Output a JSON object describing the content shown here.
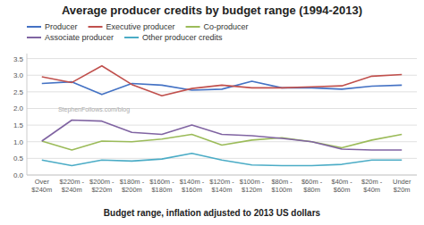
{
  "chart_data": {
    "type": "line",
    "title": "Average producer credits by budget range (1994-2013)",
    "xlabel": "Budget range, inflation adjusted to 2013 US dollars",
    "categories": [
      "Over\n$240m",
      "$220m -\n$240m",
      "$200m -\n$220m",
      "$180m -\n$200m",
      "$160m -\n$180m",
      "$140m -\n$160m",
      "$120m -\n$140m",
      "$100m -\n$120m",
      "$80m -\n$100m",
      "$60m -\n$80m",
      "$40m -\n$60m",
      "$20m -\n$40m",
      "Under\n$20m"
    ],
    "series": [
      {
        "name": "Producer",
        "color": "#4472c4",
        "values": [
          2.75,
          2.8,
          2.42,
          2.75,
          2.7,
          2.55,
          2.58,
          2.82,
          2.62,
          2.62,
          2.58,
          2.67,
          2.7
        ]
      },
      {
        "name": "Executive producer",
        "color": "#c0504d",
        "values": [
          2.95,
          2.78,
          3.28,
          2.72,
          2.38,
          2.6,
          2.7,
          2.62,
          2.62,
          2.65,
          2.68,
          2.97,
          3.02
        ]
      },
      {
        "name": "Co-producer",
        "color": "#9bbb59",
        "values": [
          1.02,
          0.75,
          1.02,
          1.0,
          1.08,
          1.22,
          0.9,
          1.05,
          1.12,
          1.0,
          0.82,
          1.05,
          1.22
        ]
      },
      {
        "name": "Associate producer",
        "color": "#8064a2",
        "values": [
          1.02,
          1.65,
          1.62,
          1.28,
          1.22,
          1.5,
          1.22,
          1.18,
          1.1,
          1.0,
          0.78,
          0.75,
          0.75
        ]
      },
      {
        "name": "Other producer credits",
        "color": "#4bacc6",
        "values": [
          0.45,
          0.28,
          0.45,
          0.42,
          0.48,
          0.65,
          0.45,
          0.3,
          0.28,
          0.28,
          0.32,
          0.45,
          0.45
        ]
      }
    ],
    "ylim": [
      0.0,
      3.65
    ],
    "yticks": [
      {
        "value": 0,
        "label": "0.0"
      },
      0.5,
      {
        "value": 1,
        "label": "1.0"
      },
      1.5,
      {
        "value": 2,
        "label": "2.0"
      },
      2.5,
      {
        "value": 3,
        "label": "3.0"
      },
      3.5
    ],
    "grid": true,
    "legend": "top",
    "annotations": [
      "StephenFollows.com/blog"
    ]
  }
}
